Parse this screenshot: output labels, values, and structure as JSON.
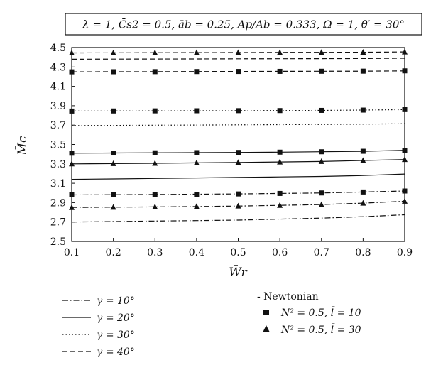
{
  "chart_data": {
    "type": "line",
    "title": "λ = 1, C̄s2 = 0.5, āb = 0.25, Ap/Ab = 0.333, Ω = 1, θ′ = 30°",
    "xlabel": "W̄r",
    "ylabel": "M̄c",
    "xlim": [
      0.1,
      0.9
    ],
    "ylim": [
      2.5,
      4.5
    ],
    "xticks": [
      "0.1",
      "0.2",
      "0.3",
      "0.4",
      "0.5",
      "0.6",
      "0.7",
      "0.8",
      "0.9"
    ],
    "yticks": [
      "2.5",
      "2.7",
      "2.9",
      "3.1",
      "3.3",
      "3.5",
      "3.7",
      "3.9",
      "4.1",
      "4.3",
      "4.5"
    ],
    "x": [
      0.1,
      0.2,
      0.3,
      0.4,
      0.5,
      0.6,
      0.7,
      0.8,
      0.9
    ],
    "grid": false,
    "series": [
      {
        "name": "γ = 10°, Newtonian",
        "gamma": "10",
        "model": "newtonian",
        "dash": "dashdot",
        "values": [
          2.7,
          2.705,
          2.71,
          2.715,
          2.72,
          2.73,
          2.74,
          2.755,
          2.775
        ]
      },
      {
        "name": "γ = 10°, N² = 0.5, l̄ = 10",
        "gamma": "10",
        "model": "l10",
        "dash": "dashdot",
        "marker": "square",
        "values": [
          2.98,
          2.982,
          2.984,
          2.987,
          2.99,
          2.995,
          3.0,
          3.01,
          3.02
        ]
      },
      {
        "name": "γ = 10°, N² = 0.5, l̄ = 30",
        "gamma": "10",
        "model": "l30",
        "dash": "dashdot",
        "marker": "triangle",
        "values": [
          2.85,
          2.853,
          2.856,
          2.86,
          2.865,
          2.872,
          2.88,
          2.895,
          2.915
        ]
      },
      {
        "name": "γ = 20°, Newtonian",
        "gamma": "20",
        "model": "newtonian",
        "dash": "solid",
        "values": [
          3.14,
          3.145,
          3.15,
          3.155,
          3.16,
          3.165,
          3.17,
          3.18,
          3.195
        ]
      },
      {
        "name": "γ = 20°, N² = 0.5, l̄ = 10",
        "gamma": "20",
        "model": "l10",
        "dash": "solid",
        "marker": "square",
        "values": [
          3.41,
          3.412,
          3.414,
          3.416,
          3.418,
          3.421,
          3.425,
          3.43,
          3.44
        ]
      },
      {
        "name": "γ = 20°, N² = 0.5, l̄ = 30",
        "gamma": "20",
        "model": "l30",
        "dash": "solid",
        "marker": "triangle",
        "values": [
          3.3,
          3.303,
          3.306,
          3.31,
          3.315,
          3.32,
          3.325,
          3.335,
          3.345
        ]
      },
      {
        "name": "γ = 30°, Newtonian",
        "gamma": "30",
        "model": "newtonian",
        "dash": "dotted",
        "values": [
          3.695,
          3.697,
          3.699,
          3.701,
          3.703,
          3.705,
          3.707,
          3.71,
          3.715
        ]
      },
      {
        "name": "γ = 30°, N² = 0.5, l̄ = 10",
        "gamma": "30",
        "model": "l10",
        "dash": "dotted",
        "marker": "square",
        "values": [
          3.845,
          3.846,
          3.847,
          3.848,
          3.849,
          3.85,
          3.852,
          3.855,
          3.86
        ]
      },
      {
        "name": "γ = 40°, Newtonian",
        "gamma": "40",
        "model": "newtonian",
        "dash": "dashed",
        "values": [
          4.38,
          4.381,
          4.382,
          4.383,
          4.384,
          4.385,
          4.386,
          4.387,
          4.39
        ]
      },
      {
        "name": "γ = 40°, N² = 0.5, l̄ = 10",
        "gamma": "40",
        "model": "l10",
        "dash": "dashed",
        "marker": "square",
        "values": [
          4.25,
          4.251,
          4.252,
          4.253,
          4.254,
          4.255,
          4.256,
          4.257,
          4.26
        ]
      },
      {
        "name": "γ = 40°, N² = 0.5, l̄ = 30",
        "gamma": "40",
        "model": "l30",
        "dash": "dashed",
        "marker": "triangle",
        "values": [
          4.445,
          4.446,
          4.447,
          4.448,
          4.449,
          4.45,
          4.451,
          4.452,
          4.455
        ]
      }
    ],
    "legend_lines": [
      {
        "label": "γ = 10°",
        "dash": "dashdot"
      },
      {
        "label": "γ = 20°",
        "dash": "solid"
      },
      {
        "label": "γ = 30°",
        "dash": "dotted"
      },
      {
        "label": "γ = 40°",
        "dash": "dashed"
      }
    ],
    "legend_markers": {
      "newtonian": "- Newtonian",
      "square": "N² = 0.5, l̄ = 10",
      "triangle": "N² = 0.5, l̄ = 30"
    },
    "legend_placement": "bottom"
  }
}
